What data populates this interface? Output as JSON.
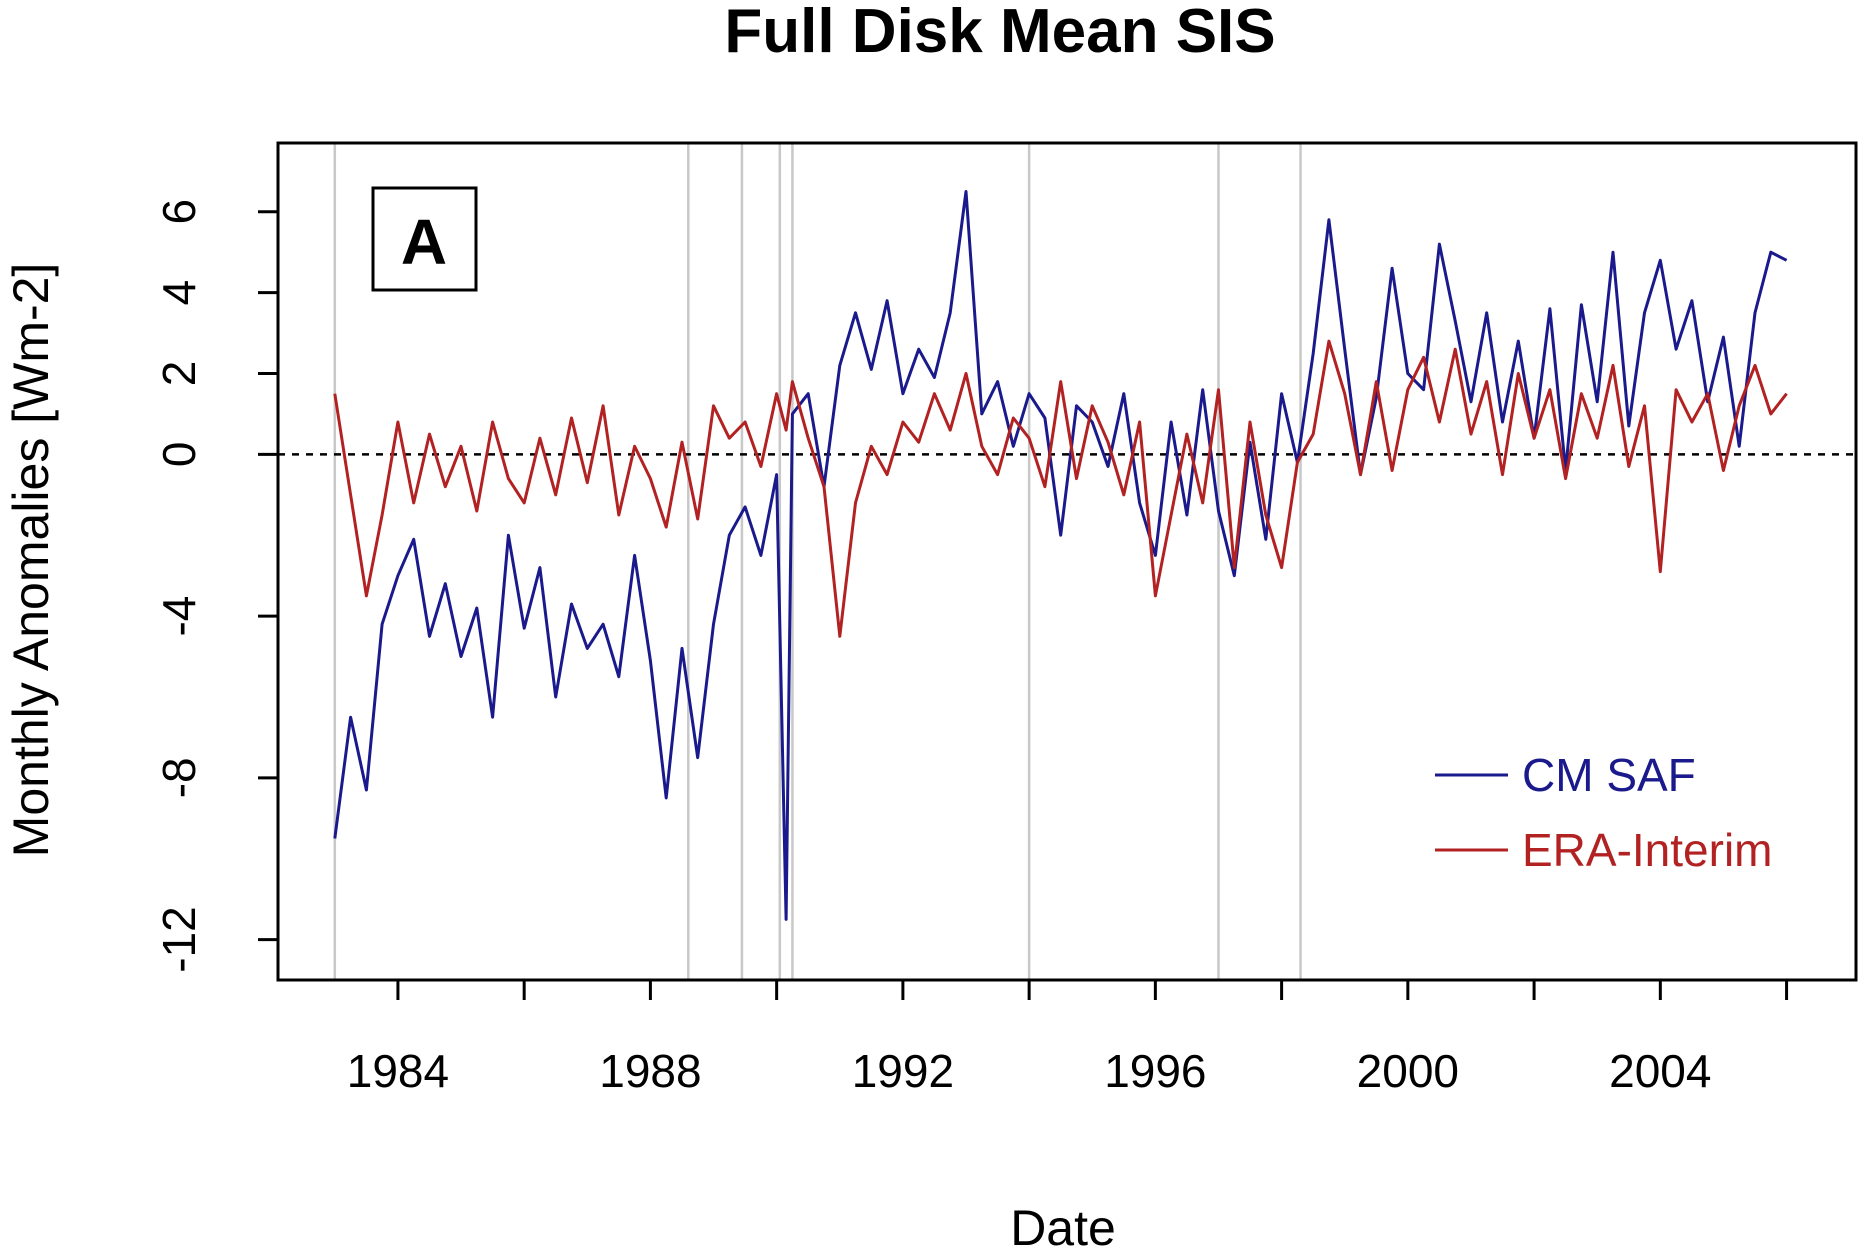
{
  "chart_data": {
    "type": "line",
    "title": "Full Disk Mean SIS",
    "xlabel": "Date",
    "ylabel": "Monthly Anomalies [Wm-2]",
    "panel_label": "A",
    "xlim": [
      1982.1,
      2007.1
    ],
    "ylim": [
      -13,
      7.7
    ],
    "xticks": [
      1984,
      1986,
      1988,
      1990,
      1992,
      1994,
      1996,
      1998,
      2000,
      2002,
      2004,
      2006
    ],
    "xtick_labels": [
      "1984",
      "",
      "1988",
      "",
      "1992",
      "",
      "1996",
      "",
      "2000",
      "",
      "2004",
      ""
    ],
    "yticks": [
      -12,
      -8,
      -4,
      0,
      2,
      4,
      6
    ],
    "ytick_labels": [
      "-12",
      "-8",
      "-4",
      "0",
      "2",
      "4",
      "6"
    ],
    "reference_line": {
      "y": 0,
      "style": "dashed",
      "color": "#000000"
    },
    "vertical_lines": {
      "x": [
        1983.0,
        1988.6,
        1989.45,
        1990.05,
        1990.25,
        1994.0,
        1997.0,
        1998.3
      ],
      "color": "#c8c8c8"
    },
    "legend": {
      "position": "bottom-right",
      "box": false
    },
    "colors": {
      "cm_saf": "#1a1a8c",
      "cm_saf_accent": "#0000ff",
      "era": "#b22222",
      "era_accent": "#ff0000",
      "frame": "#000000"
    },
    "series": [
      {
        "name": "CM SAF",
        "color": "#1a1a8c",
        "x": [
          1983.0,
          1983.25,
          1983.5,
          1983.75,
          1984.0,
          1984.25,
          1984.5,
          1984.75,
          1985.0,
          1985.25,
          1985.5,
          1985.75,
          1986.0,
          1986.25,
          1986.5,
          1986.75,
          1987.0,
          1987.25,
          1987.5,
          1987.75,
          1988.0,
          1988.25,
          1988.5,
          1988.75,
          1989.0,
          1989.25,
          1989.5,
          1989.75,
          1990.0,
          1990.15,
          1990.25,
          1990.5,
          1990.75,
          1991.0,
          1991.25,
          1991.5,
          1991.75,
          1992.0,
          1992.25,
          1992.5,
          1992.75,
          1993.0,
          1993.25,
          1993.5,
          1993.75,
          1994.0,
          1994.25,
          1994.5,
          1994.75,
          1995.0,
          1995.25,
          1995.5,
          1995.75,
          1996.0,
          1996.25,
          1996.5,
          1996.75,
          1997.0,
          1997.25,
          1997.5,
          1997.75,
          1998.0,
          1998.25,
          1998.5,
          1998.75,
          1999.0,
          1999.25,
          1999.5,
          1999.75,
          2000.0,
          2000.25,
          2000.5,
          2000.75,
          2001.0,
          2001.25,
          2001.5,
          2001.75,
          2002.0,
          2002.25,
          2002.5,
          2002.75,
          2003.0,
          2003.25,
          2003.5,
          2003.75,
          2004.0,
          2004.25,
          2004.5,
          2004.75,
          2005.0,
          2005.25,
          2005.5,
          2005.75,
          2006.0
        ],
        "y": [
          -9.5,
          -6.5,
          -8.3,
          -4.2,
          -3.0,
          -2.1,
          -4.5,
          -3.2,
          -5.0,
          -3.8,
          -6.5,
          -2.0,
          -4.3,
          -2.8,
          -6.0,
          -3.7,
          -4.8,
          -4.2,
          -5.5,
          -2.5,
          -5.1,
          -8.5,
          -4.8,
          -7.5,
          -4.2,
          -2.0,
          -1.3,
          -2.5,
          -0.5,
          -11.5,
          1.0,
          1.5,
          -0.8,
          2.2,
          3.5,
          2.1,
          3.8,
          1.5,
          2.6,
          1.9,
          3.5,
          6.5,
          1.0,
          1.8,
          0.2,
          1.5,
          0.9,
          -2.0,
          1.2,
          0.8,
          -0.3,
          1.5,
          -1.2,
          -2.5,
          0.8,
          -1.5,
          1.6,
          -1.4,
          -3.0,
          0.3,
          -2.1,
          1.5,
          -0.2,
          2.5,
          5.8,
          2.6,
          -0.5,
          1.4,
          4.6,
          2.0,
          1.6,
          5.2,
          3.3,
          1.3,
          3.5,
          0.8,
          2.8,
          0.4,
          3.6,
          -0.4,
          3.7,
          1.3,
          5.0,
          0.7,
          3.5,
          4.8,
          2.6,
          3.8,
          1.3,
          2.9,
          0.2,
          3.5,
          5.0,
          4.8
        ]
      },
      {
        "name": "ERA-Interim",
        "color": "#b22222",
        "x": [
          1983.0,
          1983.25,
          1983.5,
          1983.75,
          1984.0,
          1984.25,
          1984.5,
          1984.75,
          1985.0,
          1985.25,
          1985.5,
          1985.75,
          1986.0,
          1986.25,
          1986.5,
          1986.75,
          1987.0,
          1987.25,
          1987.5,
          1987.75,
          1988.0,
          1988.25,
          1988.5,
          1988.75,
          1989.0,
          1989.25,
          1989.5,
          1989.75,
          1990.0,
          1990.15,
          1990.25,
          1990.5,
          1990.75,
          1991.0,
          1991.25,
          1991.5,
          1991.75,
          1992.0,
          1992.25,
          1992.5,
          1992.75,
          1993.0,
          1993.25,
          1993.5,
          1993.75,
          1994.0,
          1994.25,
          1994.5,
          1994.75,
          1995.0,
          1995.25,
          1995.5,
          1995.75,
          1996.0,
          1996.25,
          1996.5,
          1996.75,
          1997.0,
          1997.25,
          1997.5,
          1997.75,
          1998.0,
          1998.25,
          1998.5,
          1998.75,
          1999.0,
          1999.25,
          1999.5,
          1999.75,
          2000.0,
          2000.25,
          2000.5,
          2000.75,
          2001.0,
          2001.25,
          2001.5,
          2001.75,
          2002.0,
          2002.25,
          2002.5,
          2002.75,
          2003.0,
          2003.25,
          2003.5,
          2003.75,
          2004.0,
          2004.25,
          2004.5,
          2004.75,
          2005.0,
          2005.25,
          2005.5,
          2005.75,
          2006.0
        ],
        "y": [
          1.5,
          -1.0,
          -3.5,
          -1.5,
          0.8,
          -1.2,
          0.5,
          -0.8,
          0.2,
          -1.4,
          0.8,
          -0.6,
          -1.2,
          0.4,
          -1.0,
          0.9,
          -0.7,
          1.2,
          -1.5,
          0.2,
          -0.6,
          -1.8,
          0.3,
          -1.6,
          1.2,
          0.4,
          0.8,
          -0.3,
          1.5,
          0.6,
          1.8,
          0.4,
          -0.8,
          -4.5,
          -1.2,
          0.2,
          -0.5,
          0.8,
          0.3,
          1.5,
          0.6,
          2.0,
          0.2,
          -0.5,
          0.9,
          0.4,
          -0.8,
          1.8,
          -0.6,
          1.2,
          0.3,
          -1.0,
          0.8,
          -3.5,
          -1.5,
          0.5,
          -1.2,
          1.6,
          -2.8,
          0.8,
          -1.5,
          -2.8,
          -0.2,
          0.5,
          2.8,
          1.5,
          -0.5,
          1.8,
          -0.4,
          1.6,
          2.4,
          0.8,
          2.6,
          0.5,
          1.8,
          -0.5,
          2.0,
          0.4,
          1.6,
          -0.6,
          1.5,
          0.4,
          2.2,
          -0.3,
          1.2,
          -2.9,
          1.6,
          0.8,
          1.5,
          -0.4,
          1.2,
          2.2,
          1.0,
          1.5
        ]
      }
    ]
  }
}
